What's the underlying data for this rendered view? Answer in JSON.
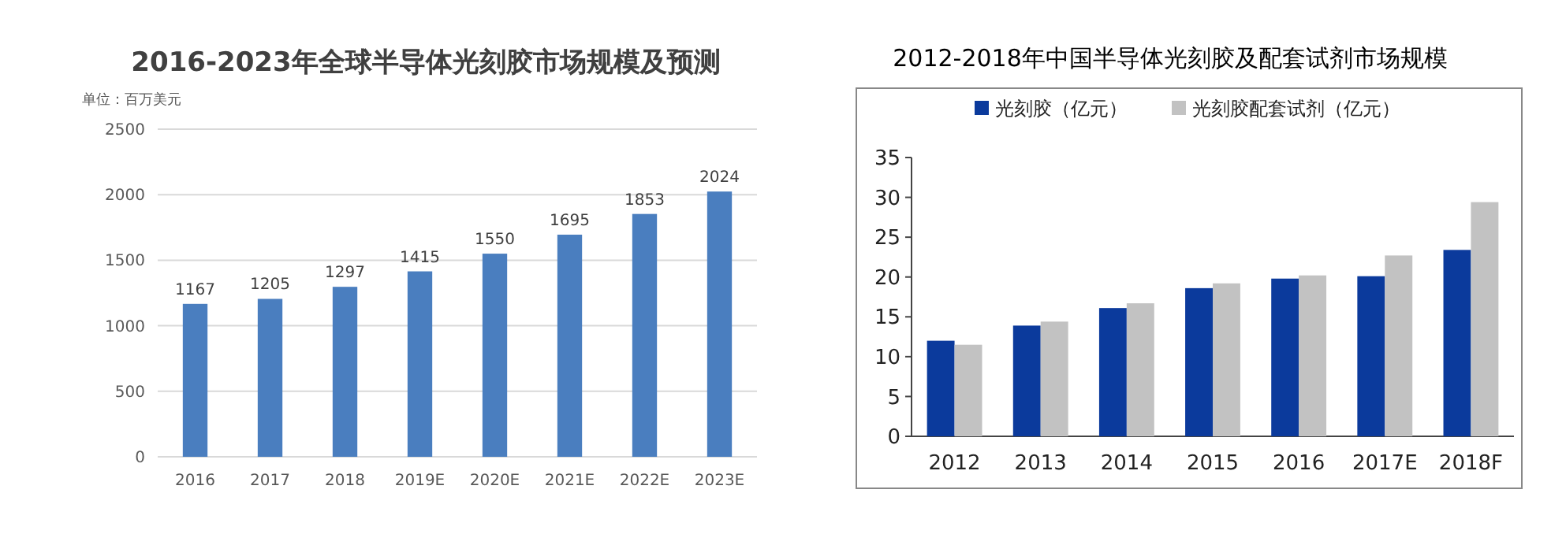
{
  "chart_data": [
    {
      "type": "bar",
      "title": "2016-2023年全球半导体光刻胶市场规模及预测",
      "ylabel": "单位：百万美元",
      "categories": [
        "2016",
        "2017",
        "2018",
        "2019E",
        "2020E",
        "2021E",
        "2022E",
        "2023E"
      ],
      "series": [
        {
          "color": "#4a7ebf",
          "values": [
            1167,
            1205,
            1297,
            1415,
            1550,
            1695,
            1853,
            2024
          ]
        }
      ],
      "ylim": [
        0,
        2500
      ],
      "yticks": [
        0,
        500,
        1000,
        1500,
        2000,
        2500
      ],
      "grid": "y",
      "data_labels": true
    },
    {
      "type": "bar",
      "title": "2012-2018年中国半导体光刻胶及配套试剂市场规模",
      "categories": [
        "2012",
        "2013",
        "2014",
        "2015",
        "2016",
        "2017E",
        "2018F"
      ],
      "series": [
        {
          "name": "光刻胶（亿元）",
          "color": "#0b3a9c",
          "values": [
            12.0,
            13.9,
            16.1,
            18.6,
            19.8,
            20.1,
            23.4
          ]
        },
        {
          "name": "光刻胶配套试剂（亿元）",
          "color": "#c2c2c2",
          "values": [
            11.5,
            14.4,
            16.7,
            19.2,
            20.2,
            22.7,
            29.4
          ]
        }
      ],
      "ylim": [
        0,
        35
      ],
      "yticks": [
        0,
        5,
        10,
        15,
        20,
        25,
        30,
        35
      ],
      "legend": "top"
    }
  ]
}
